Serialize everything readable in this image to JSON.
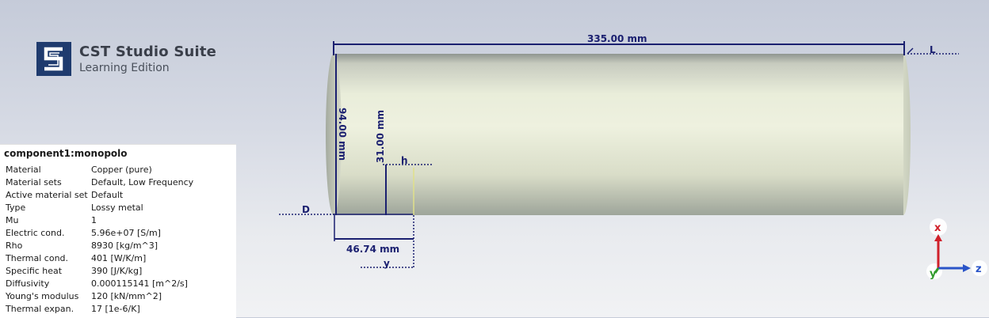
{
  "brand": {
    "title": "CST Studio Suite",
    "subtitle": "Learning Edition"
  },
  "properties": {
    "title": "component1:monopolo",
    "rows": [
      {
        "key": "Material",
        "value": "Copper (pure)"
      },
      {
        "key": "Material sets",
        "value": "Default, Low Frequency"
      },
      {
        "key": "Active material set",
        "value": "Default"
      },
      {
        "key": "Type",
        "value": "Lossy metal"
      },
      {
        "key": "Mu",
        "value": "1"
      },
      {
        "key": "Electric cond.",
        "value": "5.96e+07 [S/m]"
      },
      {
        "key": "Rho",
        "value": "8930 [kg/m^3]"
      },
      {
        "key": "Thermal cond.",
        "value": "401 [W/K/m]"
      },
      {
        "key": "Specific heat",
        "value": "390 [J/K/kg]"
      },
      {
        "key": "Diffusivity",
        "value": "0.000115141 [m^2/s]"
      },
      {
        "key": "Young's modulus",
        "value": "120 [kN/mm^2]"
      },
      {
        "key": "Thermal expan.",
        "value": "17 [1e-6/K]"
      }
    ]
  },
  "dimensions": {
    "length": "335.00 mm",
    "length_param": "L",
    "diameter": "94.00 mm",
    "diameter_param": "D",
    "height": "31.00 mm",
    "height_param": "h",
    "offset": "46.74 mm",
    "offset_param": "y"
  },
  "axes": {
    "x": "x",
    "y": "y",
    "z": "z",
    "x_color": "#d0202a",
    "y_color": "#2f9a2a",
    "z_color": "#2a54c8"
  },
  "colors": {
    "dimension": "#1b2070",
    "cylinder_light": "#eef1df",
    "cylinder_dark": "#9ea59a"
  }
}
